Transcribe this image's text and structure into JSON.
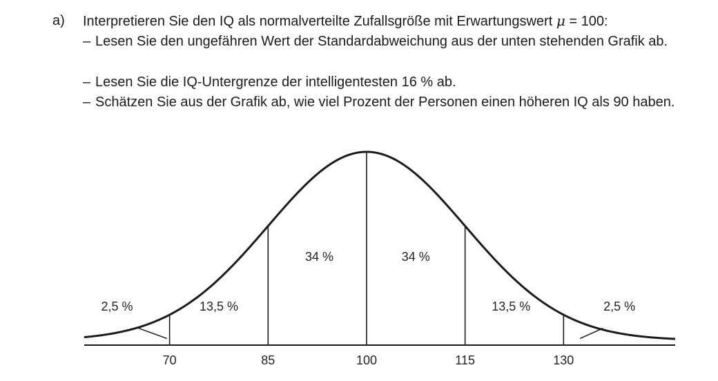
{
  "task": {
    "label": "a)",
    "intro_before_mu": "Interpretieren Sie den IQ als normalverteilte Zufallsgröße mit Erwartungswert ",
    "mu_symbol": "μ",
    "intro_after_mu": " = 100:",
    "dash": "–",
    "bullets": [
      "Lesen Sie den ungefähren Wert der Standardabweichung aus der unten stehenden Grafik ab.",
      "Lesen Sie die IQ-Untergrenze der intelligentesten 16 % ab.",
      "Schätzen Sie aus der Grafik ab, wie viel Prozent der Personen einen höheren IQ als 90 haben."
    ]
  },
  "chart_data": {
    "type": "area",
    "distribution": "normal",
    "mean": 100,
    "std": 15,
    "xlim": [
      57,
      147
    ],
    "x_ticks": [
      70,
      85,
      100,
      115,
      130
    ],
    "x_tick_labels": [
      "70",
      "85",
      "100",
      "115",
      "130"
    ],
    "divider_lines_at": [
      70,
      85,
      100,
      115,
      130
    ],
    "regions": [
      {
        "label": "2,5 %",
        "from": 57,
        "to": 70,
        "x_label": 62,
        "y_label": 0.0042,
        "pointer": {
          "x1": 65.3,
          "y1": 0.0017,
          "x2": 69.6,
          "y2": 0.00025
        }
      },
      {
        "label": "13,5 %",
        "from": 70,
        "to": 85,
        "x_label": 77.5,
        "y_label": 0.0042
      },
      {
        "label": "34 %",
        "from": 85,
        "to": 100,
        "x_label": 92.8,
        "y_label": 0.0112
      },
      {
        "label": "34 %",
        "from": 100,
        "to": 115,
        "x_label": 107.5,
        "y_label": 0.0112
      },
      {
        "label": "13,5 %",
        "from": 115,
        "to": 130,
        "x_label": 122,
        "y_label": 0.0042
      },
      {
        "label": "2,5 %",
        "from": 130,
        "to": 147,
        "x_label": 138.5,
        "y_label": 0.0042,
        "pointer": {
          "x1": 136,
          "y1": 0.0017,
          "x2": 132.5,
          "y2": 0.00025
        }
      }
    ],
    "grid": false,
    "legend": "none",
    "title": "",
    "xlabel": "",
    "ylabel": ""
  }
}
